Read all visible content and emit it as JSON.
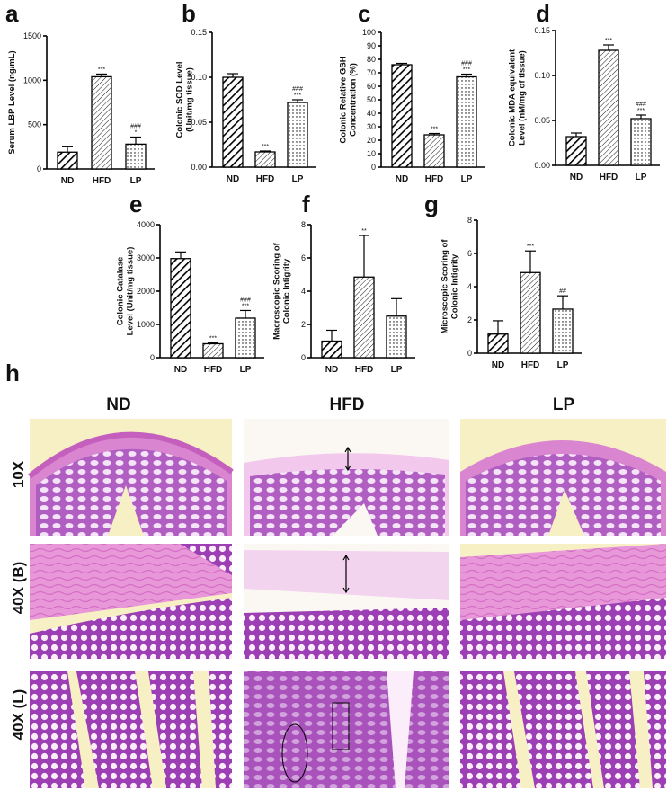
{
  "chart_data": [
    {
      "id": "a",
      "letter": "a",
      "type": "bar",
      "categories": [
        "ND",
        "HFD",
        "LP"
      ],
      "values": [
        190,
        1040,
        280
      ],
      "errors": [
        60,
        30,
        80
      ],
      "ylabel": "Serum LBP Level (ng/mL)",
      "ylim": [
        0,
        1500
      ],
      "ticks": [
        "0",
        "500",
        "1000",
        "1500"
      ],
      "annotations": [
        "",
        "***",
        "###\n*"
      ]
    },
    {
      "id": "b",
      "letter": "b",
      "type": "bar",
      "categories": [
        "ND",
        "HFD",
        "LP"
      ],
      "values": [
        0.1,
        0.017,
        0.072
      ],
      "errors": [
        0.004,
        0.001,
        0.003
      ],
      "ylabel": "Colonic SOD Level\n(Unit/mg tissue)",
      "ylim": [
        0,
        0.15
      ],
      "ticks": [
        "0.00",
        "0.05",
        "0.10",
        "0.15"
      ],
      "annotations": [
        "",
        "***",
        "###\n***"
      ]
    },
    {
      "id": "c",
      "letter": "c",
      "type": "bar",
      "categories": [
        "ND",
        "HFD",
        "LP"
      ],
      "values": [
        76,
        24,
        67
      ],
      "errors": [
        1,
        1,
        2
      ],
      "ylabel": "Colonic Relative GSH\nConcentration (%)",
      "ylim": [
        0,
        100
      ],
      "ticks": [
        "0",
        "10",
        "20",
        "30",
        "40",
        "50",
        "60",
        "70",
        "80",
        "90",
        "100"
      ],
      "annotations": [
        "",
        "***",
        "###\n***"
      ]
    },
    {
      "id": "d",
      "letter": "d",
      "type": "bar",
      "categories": [
        "ND",
        "HFD",
        "LP"
      ],
      "values": [
        0.032,
        0.128,
        0.052
      ],
      "errors": [
        0.004,
        0.006,
        0.004
      ],
      "ylabel": "Colonic MDA equivalent\nLevel (nM/mg of tissue)",
      "ylim": [
        0,
        0.15
      ],
      "ticks": [
        "0.00",
        "0.05",
        "0.10",
        "0.15"
      ],
      "annotations": [
        "",
        "***",
        "###\n***"
      ]
    },
    {
      "id": "e",
      "letter": "e",
      "type": "bar",
      "categories": [
        "ND",
        "HFD",
        "LP"
      ],
      "values": [
        2980,
        420,
        1190
      ],
      "errors": [
        200,
        30,
        230
      ],
      "ylabel": "Colonic Catalase\nLevel (Unit/mg tissue)",
      "ylim": [
        0,
        4000
      ],
      "ticks": [
        "0",
        "1000",
        "2000",
        "3000",
        "4000"
      ],
      "annotations": [
        "",
        "***",
        "###\n***"
      ]
    },
    {
      "id": "f",
      "letter": "f",
      "type": "bar",
      "categories": [
        "ND",
        "HFD",
        "LP"
      ],
      "values": [
        1.0,
        4.85,
        2.5
      ],
      "errors": [
        0.65,
        2.5,
        1.05
      ],
      "ylabel": "Macroscopic Scoring of\nColonic Intigrity",
      "ylim": [
        0,
        8
      ],
      "ticks": [
        "0",
        "2",
        "4",
        "6",
        "8"
      ],
      "annotations": [
        "",
        "**",
        ""
      ]
    },
    {
      "id": "g",
      "letter": "g",
      "type": "bar",
      "categories": [
        "ND",
        "HFD",
        "LP"
      ],
      "values": [
        1.15,
        4.85,
        2.65
      ],
      "errors": [
        0.8,
        1.3,
        0.8
      ],
      "ylabel": "Microscopic Scoring of\nColonic Intigrity",
      "ylim": [
        0,
        8
      ],
      "ticks": [
        "0",
        "2",
        "4",
        "6",
        "8"
      ],
      "annotations": [
        "",
        "***",
        "##"
      ]
    }
  ],
  "histology": {
    "letter": "h",
    "columns": [
      "ND",
      "HFD",
      "LP"
    ],
    "rows": [
      "10X",
      "40X (B)",
      "40X (L)"
    ]
  },
  "colors": {
    "stain_pink": "#e69ad9",
    "stain_purple": "#8c2fa8",
    "background": "#f7f0c4"
  }
}
